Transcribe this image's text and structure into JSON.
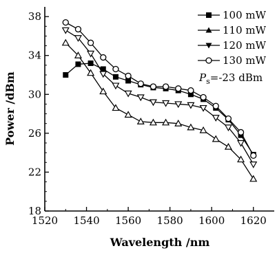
{
  "chart_data": {
    "type": "line",
    "xlabel": "Wavelength /nm",
    "ylabel": "Power /dBm",
    "xlim": [
      1520,
      1630
    ],
    "ylim": [
      18,
      39
    ],
    "xticks": [
      1520,
      1540,
      1560,
      1580,
      1600,
      1620
    ],
    "yticks": [
      18,
      22,
      26,
      30,
      34,
      38
    ],
    "legend_position": "top-right",
    "grid": false,
    "x": [
      1530,
      1536,
      1542,
      1548,
      1554,
      1560,
      1566,
      1572,
      1578,
      1584,
      1590,
      1596,
      1602,
      1608,
      1614,
      1620
    ],
    "series": [
      {
        "name": "100 mW",
        "marker": "filled-square",
        "values": [
          32.0,
          33.1,
          33.2,
          32.6,
          31.8,
          31.4,
          31.0,
          30.7,
          30.6,
          30.4,
          30.0,
          29.5,
          28.6,
          27.4,
          25.8,
          23.8
        ]
      },
      {
        "name": "110 mW",
        "marker": "open-triangle-up",
        "values": [
          35.3,
          34.0,
          32.2,
          30.3,
          28.6,
          27.9,
          27.2,
          27.1,
          27.1,
          27.0,
          26.6,
          26.3,
          25.4,
          24.6,
          23.3,
          21.3
        ]
      },
      {
        "name": "120 mW",
        "marker": "open-triangle-down",
        "values": [
          36.6,
          35.8,
          34.2,
          32.1,
          30.9,
          30.1,
          29.7,
          29.2,
          29.1,
          29.0,
          28.9,
          28.6,
          27.6,
          26.6,
          25.0,
          22.8
        ]
      },
      {
        "name": "130 mW",
        "marker": "open-circle",
        "values": [
          37.4,
          36.7,
          35.3,
          33.8,
          32.6,
          31.9,
          31.1,
          30.8,
          30.8,
          30.6,
          30.4,
          29.7,
          28.8,
          27.5,
          26.1,
          23.7
        ]
      }
    ],
    "annotation": {
      "symbol": "P",
      "subscript": "s",
      "text": "=-23 dBm"
    }
  }
}
